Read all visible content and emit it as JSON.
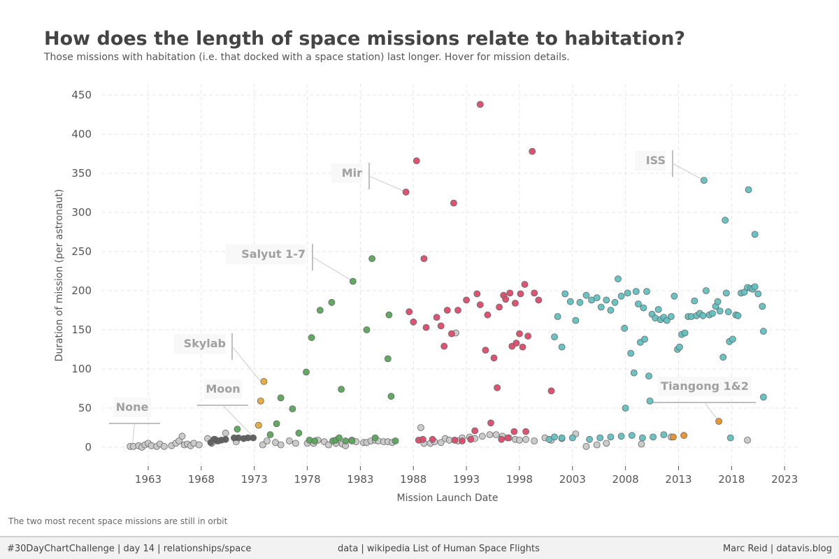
{
  "header": {
    "title": "How does the length of space missions relate to habitation?",
    "subtitle": "Those missions with habitation (i.e. that docked with a space station) last longer. Hover for mission details."
  },
  "note": "The two most recent space missions are still in orbit",
  "footer": {
    "left": "#30DayChartChallenge | day 14 | relationships/space",
    "middle": "data | wikipedia List of Human Space Flights",
    "right": "Marc Reid | datavis.blog"
  },
  "colors": {
    "none": "#c8c8c8",
    "moon": "#5c5c5c",
    "skylab": "#e8a838",
    "salyut": "#5aa55a",
    "mir": "#dd4a6a",
    "iss": "#62c0c0",
    "tiangong": "#e8902a"
  },
  "chart_data": {
    "type": "scatter",
    "xlabel": "Mission Launch Date",
    "ylabel": "Duration of mission (per astronaut)",
    "x_ticks": [
      "1963",
      "1968",
      "1973",
      "1978",
      "1983",
      "1988",
      "1993",
      "1998",
      "2003",
      "2008",
      "2013",
      "2018",
      "2023"
    ],
    "y_ticks": [
      0,
      50,
      100,
      150,
      200,
      250,
      300,
      350,
      400,
      450
    ],
    "xlim": [
      1958.5,
      2024.5
    ],
    "ylim": [
      -25,
      460
    ],
    "grid": true,
    "annotations": [
      {
        "label": "None",
        "x": 1961.5,
        "y": 2
      },
      {
        "label": "Moon",
        "x": 1973.0,
        "y": 12
      },
      {
        "label": "Skylab",
        "x": 1973.6,
        "y": 84
      },
      {
        "label": "Salyut 1-7",
        "x": 1982.3,
        "y": 212
      },
      {
        "label": "Mir",
        "x": 1987.3,
        "y": 326
      },
      {
        "label": "ISS",
        "x": 2015.4,
        "y": 341
      },
      {
        "label": "Tiangong 1&2",
        "x": 2016.8,
        "y": 33
      }
    ],
    "series": [
      {
        "name": "None",
        "color_key": "none",
        "points": [
          [
            1961.3,
            1
          ],
          [
            1961.6,
            1
          ],
          [
            1962.1,
            2
          ],
          [
            1962.4,
            0
          ],
          [
            1962.7,
            3
          ],
          [
            1963.0,
            5
          ],
          [
            1963.3,
            2
          ],
          [
            1963.8,
            1
          ],
          [
            1964.1,
            4
          ],
          [
            1964.5,
            1
          ],
          [
            1965.2,
            2
          ],
          [
            1965.6,
            5
          ],
          [
            1965.9,
            8
          ],
          [
            1966.2,
            14
          ],
          [
            1966.4,
            3
          ],
          [
            1966.7,
            4
          ],
          [
            1967.0,
            2
          ],
          [
            1967.3,
            5
          ],
          [
            1967.8,
            3
          ],
          [
            1968.6,
            11
          ],
          [
            1969.0,
            5
          ],
          [
            1969.3,
            10
          ],
          [
            1969.6,
            8
          ],
          [
            1970.3,
            18
          ],
          [
            1971.3,
            7
          ],
          [
            1973.8,
            3
          ],
          [
            1974.2,
            8
          ],
          [
            1975.0,
            6
          ],
          [
            1975.5,
            3
          ],
          [
            1976.3,
            8
          ],
          [
            1976.9,
            5
          ],
          [
            1978.0,
            5
          ],
          [
            1978.6,
            5
          ],
          [
            1979.0,
            9
          ],
          [
            1979.6,
            7
          ],
          [
            1980.0,
            3
          ],
          [
            1980.7,
            5
          ],
          [
            1981.3,
            4
          ],
          [
            1981.6,
            2
          ],
          [
            1982.2,
            9
          ],
          [
            1982.6,
            7
          ],
          [
            1983.3,
            6
          ],
          [
            1983.6,
            6
          ],
          [
            1984.0,
            8
          ],
          [
            1984.4,
            9
          ],
          [
            1984.7,
            8
          ],
          [
            1985.2,
            7
          ],
          [
            1985.6,
            7
          ],
          [
            1986.0,
            6
          ],
          [
            1988.7,
            25
          ],
          [
            1989.0,
            5
          ],
          [
            1989.6,
            5
          ],
          [
            1990.0,
            7
          ],
          [
            1990.6,
            6
          ],
          [
            1991.0,
            11
          ],
          [
            1991.4,
            9
          ],
          [
            1992.2,
            8
          ],
          [
            1992.6,
            12
          ],
          [
            1993.3,
            13
          ],
          [
            1993.8,
            11
          ],
          [
            1994.5,
            14
          ],
          [
            1995.2,
            16
          ],
          [
            1995.8,
            16
          ],
          [
            1996.4,
            14
          ],
          [
            1997.0,
            12
          ],
          [
            1997.6,
            10
          ],
          [
            1998.0,
            9
          ],
          [
            1998.6,
            10
          ],
          [
            1999.4,
            8
          ],
          [
            2000.4,
            12
          ],
          [
            2001.0,
            9
          ],
          [
            2002.0,
            11
          ],
          [
            2003.3,
            17
          ],
          [
            2004.3,
            1
          ],
          [
            2005.3,
            3
          ],
          [
            2006.2,
            5
          ],
          [
            2009.5,
            4
          ],
          [
            2012.3,
            13
          ],
          [
            2019.5,
            9
          ],
          [
            1992.0,
            146
          ]
        ]
      },
      {
        "name": "Moon",
        "color_key": "moon",
        "points": [
          [
            1968.9,
            6
          ],
          [
            1969.2,
            10
          ],
          [
            1969.5,
            8
          ],
          [
            1969.9,
            9
          ],
          [
            1970.3,
            10
          ],
          [
            1971.1,
            12
          ],
          [
            1971.5,
            12
          ],
          [
            1972.0,
            11
          ],
          [
            1972.4,
            12
          ],
          [
            1972.9,
            12
          ]
        ]
      },
      {
        "name": "Skylab",
        "color_key": "skylab",
        "points": [
          [
            1973.4,
            28
          ],
          [
            1973.6,
            59
          ],
          [
            1973.9,
            84
          ]
        ]
      },
      {
        "name": "Salyut 1-7",
        "color_key": "salyut",
        "points": [
          [
            1971.4,
            23
          ],
          [
            1974.5,
            16
          ],
          [
            1975.1,
            30
          ],
          [
            1975.5,
            63
          ],
          [
            1976.6,
            49
          ],
          [
            1977.2,
            18
          ],
          [
            1977.9,
            96
          ],
          [
            1978.2,
            9
          ],
          [
            1978.4,
            140
          ],
          [
            1978.7,
            8
          ],
          [
            1979.2,
            175
          ],
          [
            1980.3,
            185
          ],
          [
            1980.4,
            8
          ],
          [
            1980.7,
            9
          ],
          [
            1981.0,
            12
          ],
          [
            1981.2,
            74
          ],
          [
            1981.6,
            8
          ],
          [
            1982.2,
            8
          ],
          [
            1982.3,
            212
          ],
          [
            1983.6,
            150
          ],
          [
            1984.1,
            241
          ],
          [
            1984.4,
            12
          ],
          [
            1985.6,
            113
          ],
          [
            1985.7,
            169
          ],
          [
            1985.9,
            65
          ],
          [
            1986.3,
            8
          ]
        ]
      },
      {
        "name": "Mir",
        "color_key": "mir",
        "points": [
          [
            1987.3,
            326
          ],
          [
            1987.6,
            173
          ],
          [
            1988.0,
            160
          ],
          [
            1988.3,
            366
          ],
          [
            1988.5,
            9
          ],
          [
            1988.9,
            10
          ],
          [
            1989.0,
            241
          ],
          [
            1989.2,
            153
          ],
          [
            1989.8,
            10
          ],
          [
            1990.2,
            166
          ],
          [
            1990.6,
            155
          ],
          [
            1990.9,
            129
          ],
          [
            1991.2,
            175
          ],
          [
            1991.6,
            145
          ],
          [
            1991.8,
            312
          ],
          [
            1991.9,
            9
          ],
          [
            1992.2,
            175
          ],
          [
            1992.6,
            8
          ],
          [
            1993.0,
            188
          ],
          [
            1993.4,
            10
          ],
          [
            1993.8,
            21
          ],
          [
            1994.0,
            196
          ],
          [
            1994.3,
            182
          ],
          [
            1994.3,
            438
          ],
          [
            1994.8,
            124
          ],
          [
            1995.0,
            169
          ],
          [
            1995.3,
            31
          ],
          [
            1995.6,
            114
          ],
          [
            1995.9,
            76
          ],
          [
            1996.1,
            179
          ],
          [
            1996.3,
            10
          ],
          [
            1996.5,
            194
          ],
          [
            1996.7,
            189
          ],
          [
            1996.9,
            12
          ],
          [
            1997.1,
            197
          ],
          [
            1997.3,
            129
          ],
          [
            1997.5,
            20
          ],
          [
            1997.6,
            184
          ],
          [
            1997.7,
            133
          ],
          [
            1998.0,
            145
          ],
          [
            1998.1,
            196
          ],
          [
            1998.3,
            128
          ],
          [
            1998.5,
            208
          ],
          [
            1998.6,
            20
          ],
          [
            1998.8,
            142
          ],
          [
            1999.2,
            378
          ],
          [
            1999.4,
            197
          ],
          [
            1999.8,
            188
          ],
          [
            2001.0,
            72
          ]
        ]
      },
      {
        "name": "ISS",
        "color_key": "iss",
        "points": [
          [
            2000.8,
            10
          ],
          [
            2001.3,
            141
          ],
          [
            2001.6,
            167
          ],
          [
            2002.0,
            128
          ],
          [
            2002.3,
            196
          ],
          [
            2002.8,
            186
          ],
          [
            2003.3,
            162
          ],
          [
            2003.7,
            185
          ],
          [
            2004.3,
            194
          ],
          [
            2004.8,
            188
          ],
          [
            2005.3,
            191
          ],
          [
            2005.7,
            179
          ],
          [
            2006.2,
            188
          ],
          [
            2006.6,
            175
          ],
          [
            2007.0,
            185
          ],
          [
            2007.3,
            215
          ],
          [
            2007.6,
            193
          ],
          [
            2007.9,
            152
          ],
          [
            2008.2,
            197
          ],
          [
            2008.5,
            120
          ],
          [
            2008.8,
            95
          ],
          [
            2009.0,
            199
          ],
          [
            2009.2,
            183
          ],
          [
            2009.4,
            134
          ],
          [
            2009.7,
            178
          ],
          [
            2009.8,
            138
          ],
          [
            2010.0,
            199
          ],
          [
            2010.2,
            91
          ],
          [
            2010.3,
            59
          ],
          [
            2010.5,
            170
          ],
          [
            2010.8,
            165
          ],
          [
            2011.1,
            176
          ],
          [
            2011.3,
            163
          ],
          [
            2011.6,
            166
          ],
          [
            2011.9,
            162
          ],
          [
            2012.3,
            167
          ],
          [
            2012.6,
            193
          ],
          [
            2012.9,
            125
          ],
          [
            2013.1,
            128
          ],
          [
            2013.3,
            144
          ],
          [
            2013.6,
            146
          ],
          [
            2013.9,
            167
          ],
          [
            2014.2,
            167
          ],
          [
            2014.5,
            187
          ],
          [
            2014.7,
            168
          ],
          [
            2015.0,
            171
          ],
          [
            2015.3,
            168
          ],
          [
            2015.6,
            200
          ],
          [
            2015.9,
            169
          ],
          [
            2016.2,
            171
          ],
          [
            2016.5,
            180
          ],
          [
            2016.7,
            186
          ],
          [
            2016.9,
            174
          ],
          [
            2017.2,
            115
          ],
          [
            2017.5,
            197
          ],
          [
            2017.7,
            173
          ],
          [
            2017.8,
            135
          ],
          [
            2018.1,
            138
          ],
          [
            2018.4,
            169
          ],
          [
            2018.6,
            168
          ],
          [
            2018.9,
            197
          ],
          [
            2019.2,
            198
          ],
          [
            2019.5,
            204
          ],
          [
            2019.8,
            203
          ],
          [
            2020.0,
            202
          ],
          [
            2020.2,
            205
          ],
          [
            2020.5,
            196
          ],
          [
            2020.9,
            180
          ],
          [
            2021.0,
            148
          ],
          [
            2015.4,
            341
          ],
          [
            2017.4,
            290
          ],
          [
            2019.6,
            329
          ],
          [
            2020.2,
            272
          ],
          [
            2017.9,
            12
          ],
          [
            2021.0,
            64
          ],
          [
            2003.0,
            12
          ],
          [
            2008.0,
            50
          ],
          [
            2004.6,
            10
          ],
          [
            2005.6,
            12
          ],
          [
            2006.6,
            13
          ],
          [
            2007.6,
            14
          ],
          [
            2008.6,
            15
          ],
          [
            2009.6,
            12
          ],
          [
            2010.6,
            13
          ],
          [
            2011.6,
            16
          ],
          [
            2001.3,
            13
          ],
          [
            2002.0,
            12
          ]
        ]
      },
      {
        "name": "Tiangong 1&2",
        "color_key": "tiangong",
        "points": [
          [
            2012.5,
            13
          ],
          [
            2013.5,
            15
          ],
          [
            2016.8,
            33
          ]
        ]
      }
    ]
  }
}
